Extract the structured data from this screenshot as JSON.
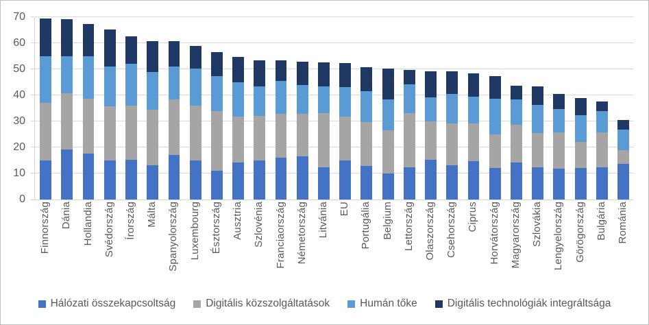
{
  "chart_data": {
    "type": "bar",
    "stacked": true,
    "orientation": "vertical",
    "title": "",
    "xlabel": "",
    "ylabel": "",
    "ylim": [
      0,
      70
    ],
    "yticks": [
      0,
      10,
      20,
      30,
      40,
      50,
      60,
      70
    ],
    "grid": true,
    "legend_position": "bottom",
    "categories": [
      "Finnország",
      "Dánia",
      "Hollandia",
      "Svédország",
      "Írország",
      "Málta",
      "Spanyolország",
      "Luxembourg",
      "Észtország",
      "Ausztria",
      "Szlovénia",
      "Franciaország",
      "Németország",
      "Litvánia",
      "EU",
      "Portugália",
      "Belgium",
      "Lettország",
      "Olaszország",
      "Csehország",
      "Ciprus",
      "Horvátország",
      "Magyarország",
      "Szlovákia",
      "Lengyelország",
      "Görögország",
      "Bulgária",
      "Románia"
    ],
    "series": [
      {
        "name": "Hálózati összekapcsoltság",
        "color": "#4472C4",
        "values": [
          15.0,
          19.1,
          17.7,
          15.1,
          15.2,
          13.1,
          17.1,
          14.9,
          11.1,
          14.1,
          15.0,
          16.0,
          16.7,
          12.3,
          15.0,
          12.9,
          9.9,
          12.3,
          15.3,
          13.2,
          14.7,
          12.1,
          14.3,
          12.3,
          11.9,
          12.2,
          12.5,
          13.6
        ]
      },
      {
        "name": "Digitális közszolgáltatások",
        "color": "#A5A5A5",
        "values": [
          22.0,
          21.7,
          21.1,
          20.7,
          20.9,
          21.4,
          21.3,
          21.2,
          22.8,
          17.8,
          17.2,
          16.9,
          16.3,
          20.8,
          16.8,
          16.8,
          16.7,
          20.9,
          14.6,
          15.9,
          14.4,
          12.9,
          14.4,
          13.2,
          13.8,
          9.9,
          13.4,
          5.4
        ]
      },
      {
        "name": "Humán tőke",
        "color": "#5B9BD5",
        "values": [
          18.0,
          14.2,
          16.2,
          15.3,
          15.9,
          14.4,
          12.7,
          14.3,
          13.5,
          13.2,
          11.1,
          12.7,
          10.9,
          10.3,
          11.4,
          11.9,
          11.7,
          10.9,
          9.2,
          11.5,
          10.5,
          13.6,
          9.6,
          10.9,
          9.1,
          10.3,
          8.0,
          7.9
        ]
      },
      {
        "name": "Digitális technológiák integráltsága",
        "color": "#203864",
        "values": [
          14.6,
          14.3,
          12.4,
          14.1,
          10.7,
          12.0,
          9.7,
          8.5,
          9.1,
          9.6,
          10.1,
          7.7,
          9.0,
          9.3,
          9.1,
          9.2,
          12.0,
          5.6,
          10.2,
          8.5,
          8.8,
          8.9,
          5.5,
          7.0,
          5.7,
          6.5,
          3.8,
          3.7
        ]
      }
    ],
    "totals": [
      69.6,
      69.3,
      67.4,
      65.2,
      62.7,
      60.9,
      60.8,
      58.9,
      56.5,
      54.7,
      53.4,
      53.3,
      52.9,
      52.7,
      52.3,
      50.8,
      50.3,
      49.7,
      49.3,
      49.1,
      48.4,
      47.5,
      43.8,
      43.4,
      40.5,
      38.9,
      37.7,
      30.6
    ]
  },
  "colors": {
    "gridline": "#d9d9d9",
    "axis_line": "#d6d6d6",
    "tick_text": "#595959",
    "background": "#ffffff",
    "frame_border": "#bfbfbf"
  }
}
